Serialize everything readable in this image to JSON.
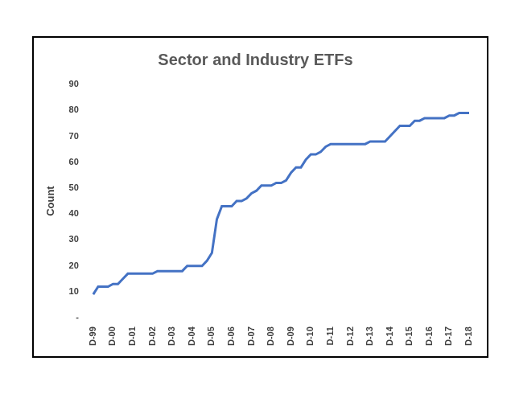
{
  "chart_data": {
    "type": "line",
    "title": "Sector and Industry ETFs",
    "y_label": "Count",
    "categories": [
      "D-99",
      null,
      null,
      null,
      "D-00",
      null,
      null,
      null,
      "D-01",
      null,
      null,
      null,
      "D-02",
      null,
      null,
      null,
      "D-03",
      null,
      null,
      null,
      "D-04",
      null,
      null,
      null,
      "D-05",
      null,
      null,
      null,
      "D-06",
      null,
      null,
      null,
      "D-07",
      null,
      null,
      null,
      "D-08",
      null,
      null,
      null,
      "D-09",
      null,
      null,
      null,
      "D-10",
      null,
      null,
      null,
      "D-11",
      null,
      null,
      null,
      "D-12",
      null,
      null,
      null,
      "D-13",
      null,
      null,
      null,
      "D-14",
      null,
      null,
      null,
      "D-15",
      null,
      null,
      null,
      "D-16",
      null,
      null,
      null,
      "D-17",
      null,
      null,
      null,
      "D-18"
    ],
    "values": [
      9,
      12,
      12,
      12,
      13,
      13,
      15,
      17,
      17,
      17,
      17,
      17,
      17,
      18,
      18,
      18,
      18,
      18,
      18,
      20,
      20,
      20,
      20,
      22,
      25,
      38,
      43,
      43,
      43,
      45,
      45,
      46,
      48,
      49,
      51,
      51,
      51,
      52,
      52,
      53,
      56,
      58,
      58,
      61,
      63,
      63,
      64,
      66,
      67,
      67,
      67,
      67,
      67,
      67,
      67,
      67,
      68,
      68,
      68,
      68,
      70,
      72,
      74,
      74,
      74,
      76,
      76,
      77,
      77,
      77,
      77,
      77,
      78,
      78,
      79,
      79,
      79
    ],
    "color": "#4472c4",
    "ylim": [
      0,
      90
    ],
    "yticks": [
      {
        "value": 0,
        "label": "-"
      },
      10,
      20,
      30,
      40,
      50,
      60,
      70,
      80,
      90
    ],
    "grid": false
  }
}
